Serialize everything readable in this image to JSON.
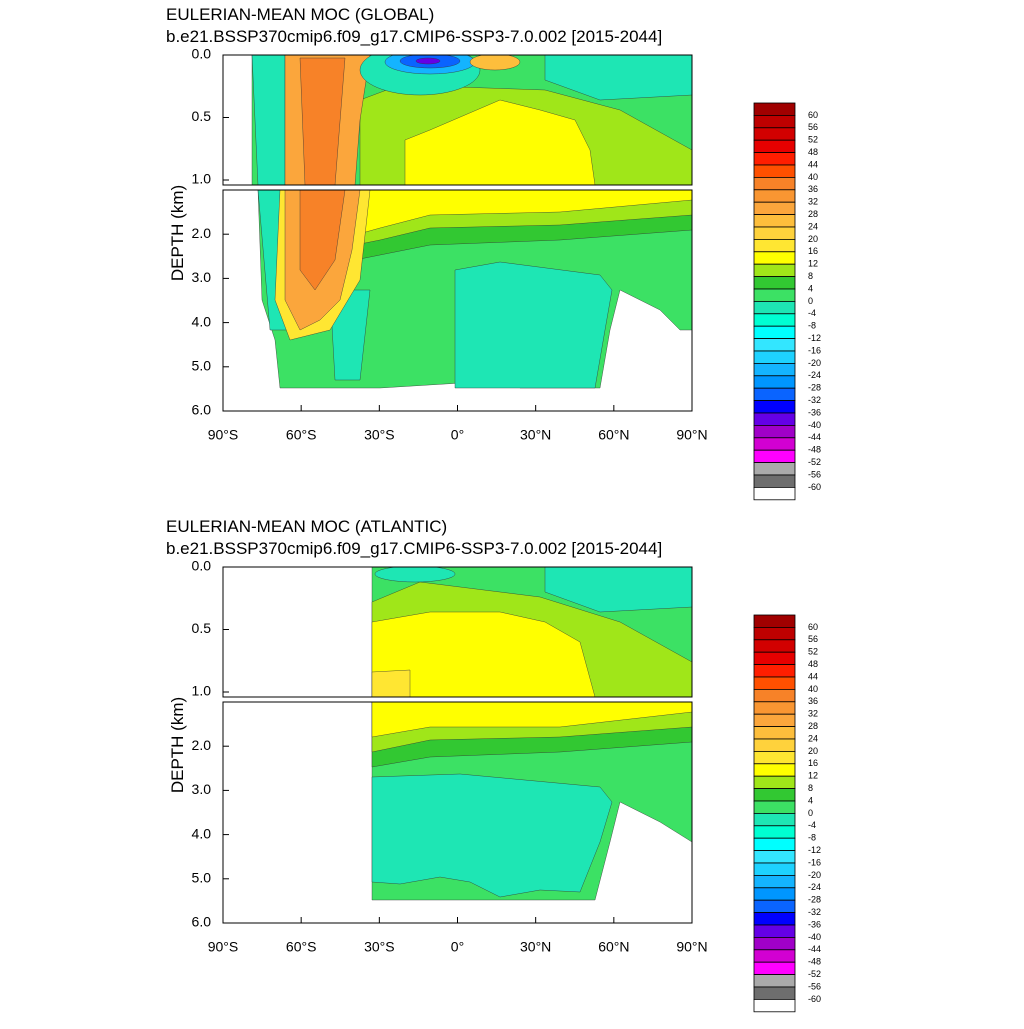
{
  "chart_data": [
    {
      "type": "contour",
      "title": "EULERIAN-MEAN MOC (GLOBAL)",
      "subtitle": "b.e21.BSSP370cmip6.f09_g17.CMIP6-SSP3-7.0.002 [2015-2044]",
      "ylabel": "DEPTH (km)",
      "xlim": [
        -90,
        90
      ],
      "ylim": [
        0,
        6
      ],
      "xticks": [
        {
          "value": -90,
          "label": "90°S"
        },
        {
          "value": -60,
          "label": "60°S"
        },
        {
          "value": -30,
          "label": "30°S"
        },
        {
          "value": 0,
          "label": "0°"
        },
        {
          "value": 30,
          "label": "30°N"
        },
        {
          "value": 60,
          "label": "60°N"
        },
        {
          "value": 90,
          "label": "90°N"
        }
      ],
      "yticks": [
        {
          "value": 0,
          "label": "0.0"
        },
        {
          "value": 0.5,
          "label": "0.5"
        },
        {
          "value": 1,
          "label": "1.0"
        },
        {
          "value": 2,
          "label": "2.0"
        },
        {
          "value": 3,
          "label": "3.0"
        },
        {
          "value": 4,
          "label": "4.0"
        },
        {
          "value": 5,
          "label": "5.0"
        },
        {
          "value": 6,
          "label": "6.0"
        }
      ],
      "colorbar": {
        "levels": [
          60,
          56,
          52,
          48,
          44,
          40,
          36,
          32,
          28,
          24,
          20,
          16,
          12,
          8,
          4,
          0,
          -4,
          -8,
          -12,
          -16,
          -20,
          -24,
          -28,
          -32,
          -36,
          -40,
          -44,
          -48,
          -52,
          -56,
          -60
        ],
        "colors": [
          "#a00000",
          "#be0000",
          "#d20000",
          "#e60000",
          "#ff1e00",
          "#ff5000",
          "#f78228",
          "#f99632",
          "#fba63c",
          "#fdbe3c",
          "#ffd23c",
          "#ffe632",
          "#ffff00",
          "#a0e619",
          "#32c832",
          "#3ce164",
          "#1ee6b4",
          "#00ffd2",
          "#00ffff",
          "#33e6ff",
          "#1ed2ff",
          "#14b4ff",
          "#0096ff",
          "#0a64ff",
          "#0000ff",
          "#6400e6",
          "#a000c8",
          "#d200d2",
          "#ff00ff",
          "#aaaaaa",
          "#6e6e6e",
          "#ffffff"
        ]
      }
    },
    {
      "type": "contour",
      "title": "EULERIAN-MEAN MOC (ATLANTIC)",
      "subtitle": "b.e21.BSSP370cmip6.f09_g17.CMIP6-SSP3-7.0.002 [2015-2044]",
      "ylabel": "DEPTH (km)",
      "xlim": [
        -90,
        90
      ],
      "ylim": [
        0,
        6
      ],
      "xticks": [
        {
          "value": -90,
          "label": "90°S"
        },
        {
          "value": -60,
          "label": "60°S"
        },
        {
          "value": -30,
          "label": "30°S"
        },
        {
          "value": 0,
          "label": "0°"
        },
        {
          "value": 30,
          "label": "30°N"
        },
        {
          "value": 60,
          "label": "60°N"
        },
        {
          "value": 90,
          "label": "90°N"
        }
      ],
      "yticks": [
        {
          "value": 0,
          "label": "0.0"
        },
        {
          "value": 0.5,
          "label": "0.5"
        },
        {
          "value": 1,
          "label": "1.0"
        },
        {
          "value": 2,
          "label": "2.0"
        },
        {
          "value": 3,
          "label": "3.0"
        },
        {
          "value": 4,
          "label": "4.0"
        },
        {
          "value": 5,
          "label": "5.0"
        },
        {
          "value": 6,
          "label": "6.0"
        }
      ],
      "colorbar": {
        "levels": [
          60,
          56,
          52,
          48,
          44,
          40,
          36,
          32,
          28,
          24,
          20,
          16,
          12,
          8,
          4,
          0,
          -4,
          -8,
          -12,
          -16,
          -20,
          -24,
          -28,
          -32,
          -36,
          -40,
          -44,
          -48,
          -52,
          -56,
          -60
        ],
        "colors": [
          "#a00000",
          "#be0000",
          "#d20000",
          "#e60000",
          "#ff1e00",
          "#ff5000",
          "#f78228",
          "#f99632",
          "#fba63c",
          "#fdbe3c",
          "#ffd23c",
          "#ffe632",
          "#ffff00",
          "#a0e619",
          "#32c832",
          "#3ce164",
          "#1ee6b4",
          "#00ffd2",
          "#00ffff",
          "#33e6ff",
          "#1ed2ff",
          "#14b4ff",
          "#0096ff",
          "#0a64ff",
          "#0000ff",
          "#6400e6",
          "#a000c8",
          "#d200d2",
          "#ff00ff",
          "#aaaaaa",
          "#6e6e6e",
          "#ffffff"
        ]
      }
    }
  ]
}
